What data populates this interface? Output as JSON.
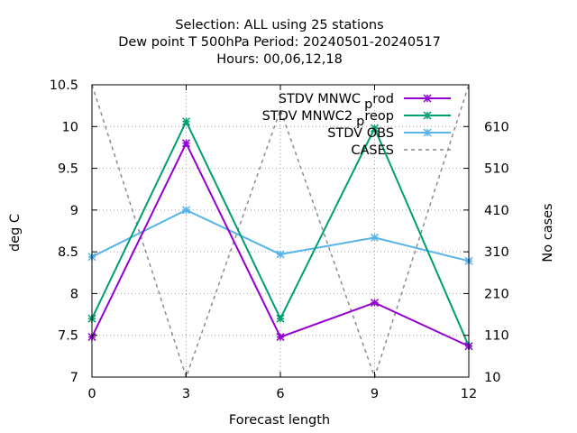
{
  "chart_data": {
    "type": "line",
    "title_lines": [
      "Selection: ALL using    25 stations",
      "Dew point T 500hPa   Period: 20240501-20240517",
      "Hours:  00,06,12,18"
    ],
    "xlabel": "Forecast length",
    "ylabel": "deg C",
    "y2label": "No cases",
    "x": [
      0,
      3,
      6,
      9,
      12
    ],
    "xlim": [
      0,
      12
    ],
    "xticks": [
      "0",
      "3",
      "6",
      "9",
      "12"
    ],
    "ylim": [
      7,
      10.5
    ],
    "yticks": [
      "7",
      "7.5",
      "8",
      "8.5",
      "9",
      "9.5",
      "10",
      "10.5"
    ],
    "y2lim": [
      10,
      710
    ],
    "y2ticks": [
      "10",
      "110",
      "210",
      "310",
      "410",
      "510",
      "610"
    ],
    "grid": true,
    "legend_position": "top-right",
    "series": [
      {
        "name": "STDV MNWC",
        "sub": "p",
        "suffix": "rod",
        "color": "#9400d3",
        "axis": "y1",
        "marker": "x",
        "values": [
          7.48,
          9.8,
          7.48,
          7.89,
          7.37
        ]
      },
      {
        "name": "STDV MNWC2",
        "sub": "p",
        "suffix": "reop",
        "color": "#009e73",
        "axis": "y1",
        "marker": "x",
        "values": [
          7.7,
          10.06,
          7.7,
          9.98,
          7.37
        ]
      },
      {
        "name": "STDV OBS",
        "sub": "",
        "suffix": "",
        "color": "#56b4e9",
        "axis": "y1",
        "marker": "x",
        "values": [
          8.44,
          9.0,
          8.47,
          8.67,
          8.39
        ]
      },
      {
        "name": "CASES",
        "sub": "",
        "suffix": "",
        "color": "#8c8c8c",
        "axis": "y2",
        "marker": "none",
        "dashed": true,
        "values": [
          710,
          10,
          650,
          10,
          710
        ]
      }
    ]
  }
}
